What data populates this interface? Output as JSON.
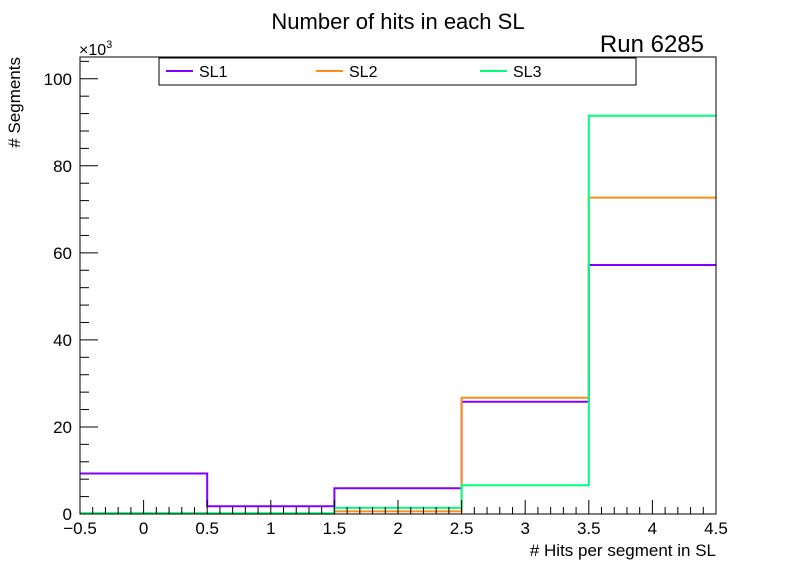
{
  "chart_data": {
    "type": "histogram-step",
    "title": "Number of hits in each SL",
    "run_label": "Run 6285",
    "xlabel": "# Hits per segment in SL",
    "ylabel": "# Segments",
    "y_multiplier": "×10",
    "y_multiplier_exp": "3",
    "xlim": [
      -0.5,
      4.5
    ],
    "ylim": [
      0,
      105
    ],
    "x_ticks": [
      -0.5,
      0,
      0.5,
      1,
      1.5,
      2,
      2.5,
      3,
      3.5,
      4,
      4.5
    ],
    "x_tick_labels": [
      "−0.5",
      "0",
      "0.5",
      "1",
      "1.5",
      "2",
      "2.5",
      "3",
      "3.5",
      "4",
      "4.5"
    ],
    "y_ticks": [
      0,
      20,
      40,
      60,
      80,
      100
    ],
    "y_tick_labels": [
      "0",
      "20",
      "40",
      "60",
      "80",
      "100"
    ],
    "bin_edges": [
      -0.5,
      0.5,
      1.5,
      2.5,
      3.5,
      4.5
    ],
    "series": [
      {
        "name": "SL1",
        "color": "#8000ff",
        "values": [
          9.3,
          1.8,
          5.9,
          25.8,
          57.2
        ]
      },
      {
        "name": "SL2",
        "color": "#ff8c1a",
        "values": [
          0.15,
          0.1,
          0.6,
          26.7,
          72.7
        ]
      },
      {
        "name": "SL3",
        "color": "#00ff7f",
        "values": [
          0.15,
          0.15,
          1.4,
          6.6,
          91.5
        ]
      }
    ],
    "legend_location": "top"
  }
}
